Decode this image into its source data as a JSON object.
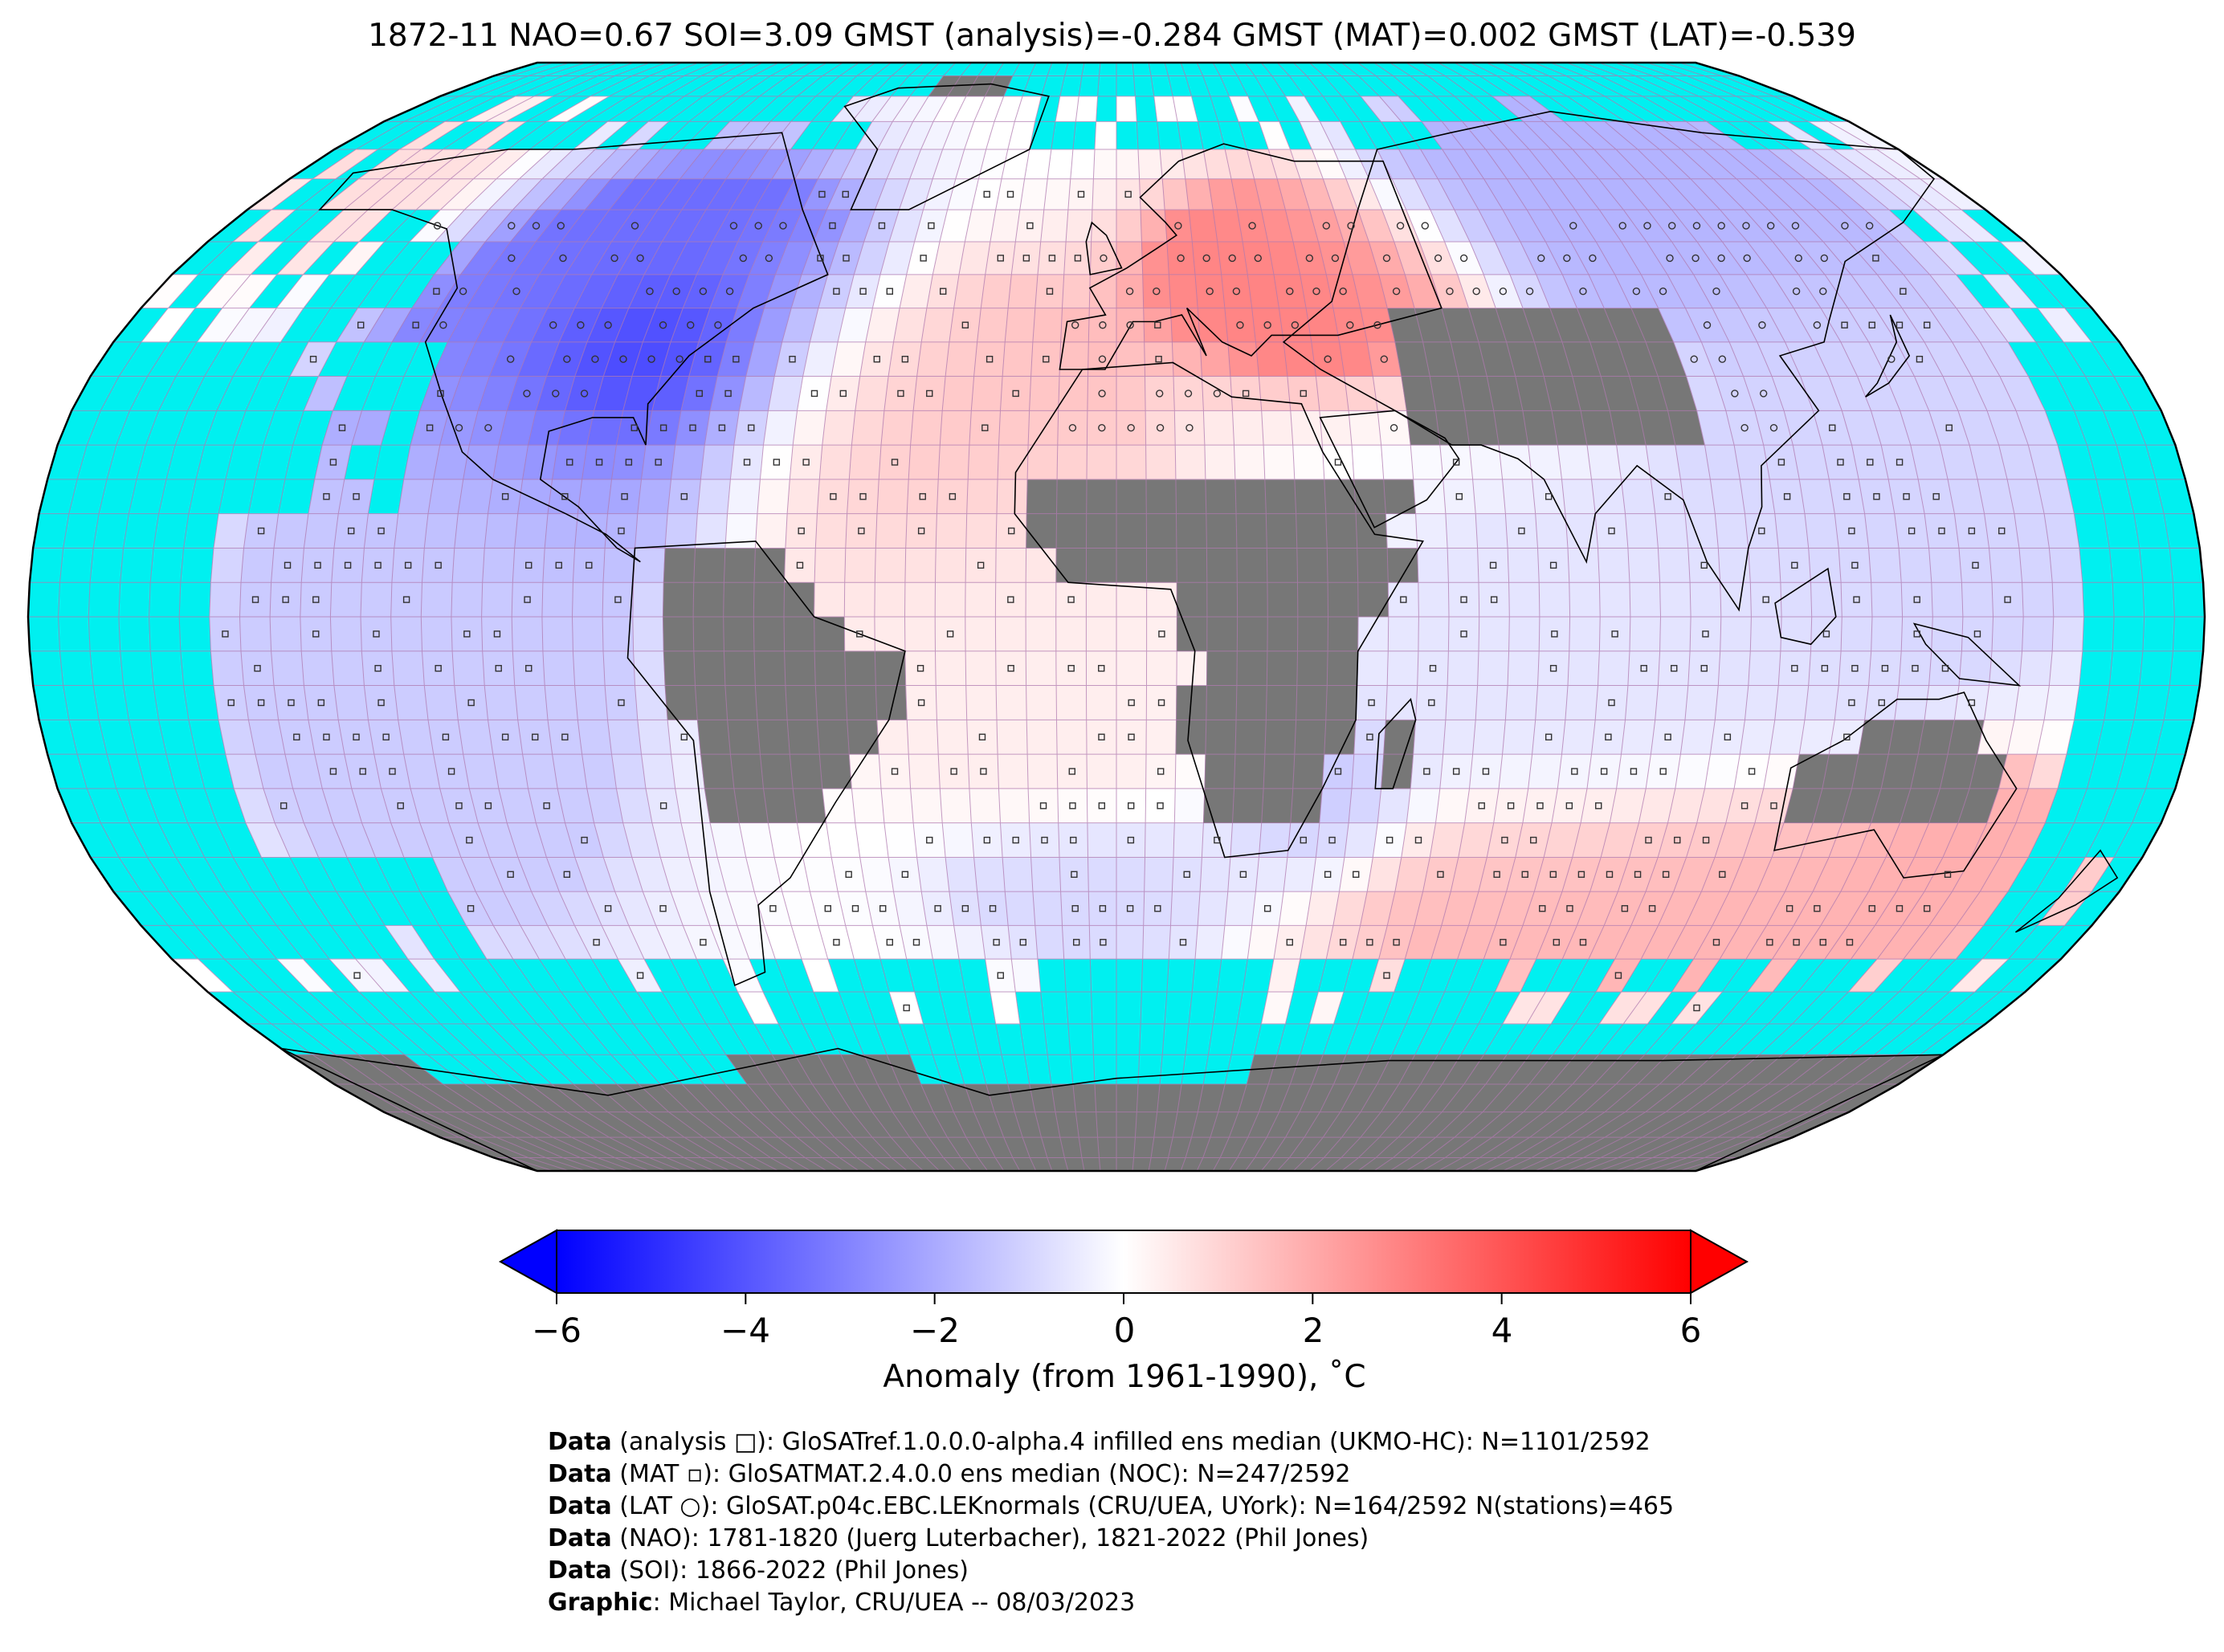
{
  "title": "1872-11 NAO=0.67 SOI=3.09 GMST (analysis)=-0.284 GMST (MAT)=0.002 GMST (LAT)=-0.539",
  "colors": {
    "ocean_missing": "#00f0f0",
    "land_missing": "#777777",
    "grid": "#b07ab0",
    "cold": "#0000ff",
    "neutral": "#ffffff",
    "warm": "#ff0000",
    "coast": "#000000"
  },
  "colorbar": {
    "ticks": [
      "−6",
      "−4",
      "−2",
      "0",
      "2",
      "4",
      "6"
    ],
    "range": [
      -6,
      6
    ],
    "extend": "both",
    "label": "Anomaly (from 1961-1990), ˚C"
  },
  "credits": [
    {
      "bold": "Data",
      "text": " (analysis □): GloSATref.1.0.0.0-alpha.4 infilled ens median (UKMO-HC): N=1101/2592"
    },
    {
      "bold": "Data",
      "text": " (MAT ▫): GloSATMAT.2.4.0.0 ens median (NOC): N=247/2592"
    },
    {
      "bold": "Data",
      "text": " (LAT ○): GloSAT.p04c.EBC.LEKnormals (CRU/UEA, UYork): N=164/2592 N(stations)=465"
    },
    {
      "bold": "Data",
      "text": " (NAO): 1781-1820 (Juerg Luterbacher), 1821-2022 (Phil Jones)"
    },
    {
      "bold": "Data",
      "text": " (SOI): 1866-2022 (Phil Jones)"
    },
    {
      "bold": "Graphic",
      "text": ": Michael Taylor, CRU/UEA -- 08/03/2023"
    }
  ],
  "map": {
    "projection": "Robinson",
    "grid_resolution_deg": 5,
    "anomaly_regions": [
      {
        "region": "North America east",
        "lon": [
          -95,
          -70
        ],
        "lat": [
          30,
          45
        ],
        "anomaly": -5.5
      },
      {
        "region": "North America central",
        "lon": [
          -115,
          -60
        ],
        "lat": [
          25,
          60
        ],
        "anomaly": -3.5
      },
      {
        "region": "Alaska",
        "lon": [
          -170,
          -140
        ],
        "lat": [
          55,
          72
        ],
        "anomaly": 0.8
      },
      {
        "region": "Eastern Europe",
        "lon": [
          15,
          55
        ],
        "lat": [
          40,
          60
        ],
        "anomaly": 3.0
      },
      {
        "region": "Siberia",
        "lon": [
          70,
          140
        ],
        "lat": [
          50,
          75
        ],
        "anomaly": -1.8
      },
      {
        "region": "North Atlantic",
        "lon": [
          -60,
          -10
        ],
        "lat": [
          15,
          45
        ],
        "anomaly": 1.5
      },
      {
        "region": "East Pacific tropics",
        "lon": [
          -140,
          -90
        ],
        "lat": [
          -35,
          20
        ],
        "anomaly": -1.2
      },
      {
        "region": "Southern Ocean Indian",
        "lon": [
          60,
          150
        ],
        "lat": [
          -50,
          -30
        ],
        "anomaly": 1.8
      },
      {
        "region": "Australia east",
        "lon": [
          135,
          155
        ],
        "lat": [
          -40,
          -25
        ],
        "anomaly": 2.0
      },
      {
        "region": "South Atlantic",
        "lon": [
          -20,
          20
        ],
        "lat": [
          -45,
          -35
        ],
        "anomaly": -1.0
      },
      {
        "region": "Southern Africa",
        "lon": [
          25,
          45
        ],
        "lat": [
          -35,
          -20
        ],
        "anomaly": -1.5
      },
      {
        "region": "Indian Ocean",
        "lon": [
          50,
          110
        ],
        "lat": [
          -25,
          10
        ],
        "anomaly": -0.6
      },
      {
        "region": "Western Pacific",
        "lon": [
          110,
          160
        ],
        "lat": [
          0,
          40
        ],
        "anomaly": -1.0
      },
      {
        "region": "Tropical Atlantic",
        "lon": [
          -40,
          10
        ],
        "lat": [
          -20,
          15
        ],
        "anomaly": 0.4
      }
    ]
  }
}
